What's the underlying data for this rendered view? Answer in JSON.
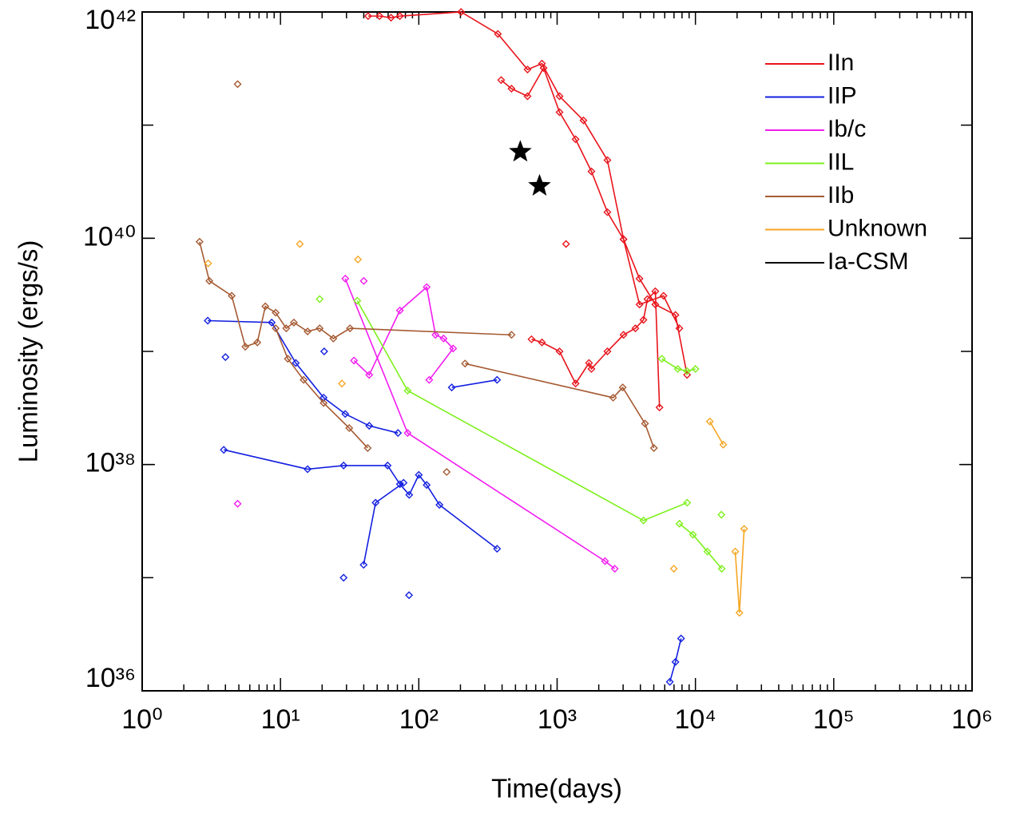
{
  "chart_data": {
    "type": "scatter",
    "xlabel": "Time(days)",
    "ylabel": "Luminosity (ergs/s)",
    "xscale": "log",
    "yscale": "log",
    "xlim": [
      1,
      1000000
    ],
    "ylim": [
      1e+36,
      1e+42
    ],
    "xticks": [
      {
        "value": 1,
        "label": "10⁰"
      },
      {
        "value": 10,
        "label": "10¹"
      },
      {
        "value": 100,
        "label": "10²"
      },
      {
        "value": 1000,
        "label": "10³"
      },
      {
        "value": 10000,
        "label": "10⁴"
      },
      {
        "value": 100000,
        "label": "10⁵"
      },
      {
        "value": 1000000,
        "label": "10⁶"
      }
    ],
    "yticks": [
      {
        "value": 1e+36,
        "label": "10³⁶"
      },
      {
        "value": 1e+38,
        "label": "10³⁸"
      },
      {
        "value": 1e+40,
        "label": "10⁴⁰"
      },
      {
        "value": 1e+42,
        "label": "10⁴²"
      }
    ],
    "legend": "top-right",
    "series": [
      {
        "name": "IIn",
        "color": "#e8141c",
        "x": [
          43,
          52,
          63,
          73,
          202,
          373,
          611,
          777,
          1041,
          1550,
          2310,
          3020,
          3940,
          5880,
          7660,
          null,
          394,
          468,
          611,
          798,
          1041,
          1360,
          1770,
          2310,
          3020,
          3940,
          5130,
          7170,
          8700,
          null,
          653,
          777,
          1041,
          1360,
          1700,
          1770,
          2310,
          3020,
          3680,
          4210,
          4500,
          5130,
          5500,
          null,
          1160
        ],
        "values": [
          9.2e+41,
          9.2e+41,
          8.9e+41,
          9.2e+41,
          1e+42,
          6.4e+41,
          3.1e+41,
          3.5e+41,
          1.8e+41,
          1.1e+41,
          4.9e+40,
          9.8e+39,
          2.6e+39,
          3.1e+39,
          1.6e+39,
          null,
          2.5e+41,
          2.1e+41,
          1.8e+41,
          3.2e+41,
          1.3e+41,
          7.5e+40,
          3.9e+40,
          1.7e+40,
          9.8e+39,
          4.4e+39,
          2.6e+39,
          2.1e+39,
          6.2e+38,
          null,
          1.28e+39,
          1.2e+39,
          1e+39,
          5.2e+38,
          7.9e+38,
          7e+38,
          1e+39,
          1.4e+39,
          1.6e+39,
          1.9e+39,
          2.9e+39,
          3.4e+39,
          3.2e+38,
          null,
          8.9e+39
        ]
      },
      {
        "name": "IIP",
        "color": "#1420e0",
        "x": [
          2.98,
          8.64,
          12.9,
          20.5,
          29.4,
          43.8,
          70.7,
          null,
          3.89,
          15.7,
          28.6,
          59.5,
          73,
          85.3,
          100,
          114,
          141,
          368,
          null,
          39.9,
          48.7,
          77.6,
          null,
          173,
          368,
          null,
          4,
          null,
          20.7,
          null,
          28.6,
          null,
          85,
          null,
          6530,
          7170,
          7870
        ],
        "values": [
          1.87e+39,
          1.8e+39,
          7.9e+38,
          3.9e+38,
          2.8e+38,
          2.2e+38,
          1.9e+38,
          null,
          1.35e+38,
          9.1e+37,
          9.8e+37,
          9.8e+37,
          6.7e+37,
          5.4e+37,
          8.1e+37,
          6.6e+37,
          4.4e+37,
          1.8e+37,
          null,
          1.3e+37,
          4.6e+37,
          6.9e+37,
          null,
          4.8e+38,
          5.6e+38,
          null,
          8.9e+38,
          null,
          1e+39,
          null,
          1e+37,
          null,
          7e+36,
          null,
          1.2e+36,
          1.8e+36,
          2.9e+36
        ]
      },
      {
        "name": "Ib/c",
        "color": "#f21cf0",
        "x": [
          29.4,
          83,
          2220,
          2610,
          null,
          34,
          43.8,
          73,
          114,
          132,
          151,
          177,
          119,
          null,
          4.9,
          null,
          40
        ],
        "values": [
          4.4e+39,
          1.9e+38,
          1.4e+37,
          1.2e+37,
          null,
          8.3e+38,
          6.2e+38,
          2.3e+39,
          3.7e+39,
          1.4e+39,
          1.3e+39,
          1.06e+39,
          5.6e+38,
          null,
          4.5e+37,
          null,
          4.2e+39
        ]
      },
      {
        "name": "IIL",
        "color": "#7ef01c",
        "x": [
          35.9,
          83,
          4210,
          8700,
          null,
          7660,
          9600,
          12200,
          15500,
          null,
          5720,
          7460,
          8700,
          10000,
          null,
          19.2,
          null,
          15400
        ],
        "values": [
          2.8e+39,
          4.5e+38,
          3.2e+37,
          4.6e+37,
          null,
          3e+37,
          2.4e+37,
          1.7e+37,
          1.2e+37,
          null,
          8.6e+38,
          7e+38,
          6.7e+38,
          7e+38,
          null,
          2.9e+39,
          null,
          3.6e+37
        ]
      },
      {
        "name": "IIb",
        "color": "#a55a32",
        "x": [
          2.6,
          3.06,
          4.44,
          5.57,
          6.8,
          7.77,
          9.23,
          11,
          12.5,
          15.7,
          19.2,
          24.1,
          31.8,
          468,
          null,
          9.23,
          11.3,
          14.7,
          20.5,
          31.4,
          42.7,
          null,
          216,
          2540,
          2980,
          4320,
          5010,
          null,
          4.9,
          null,
          159
        ],
        "values": [
          9.3e+39,
          4.2e+39,
          3.1e+39,
          1.1e+39,
          1.2e+39,
          2.5e+39,
          2.2e+39,
          1.6e+39,
          1.8e+39,
          1.5e+39,
          1.6e+39,
          1.3e+39,
          1.6e+39,
          1.4e+39,
          null,
          1.6e+39,
          8.6e+38,
          5.6e+38,
          3.5e+38,
          2.1e+38,
          1.4e+38,
          null,
          7.8e+38,
          3.9e+38,
          4.8e+38,
          2.3e+38,
          1.4e+38,
          null,
          2.3e+41,
          null,
          8.6e+37
        ]
      },
      {
        "name": "Unknown",
        "color": "#f5a623",
        "x": [
          13.8,
          null,
          36.3,
          null,
          3,
          null,
          27.8,
          null,
          12700,
          15900,
          null,
          19400,
          20800,
          22500,
          null,
          6980
        ],
        "values": [
          8.9e+39,
          null,
          6.5e+39,
          null,
          6e+39,
          null,
          5.2e+38,
          null,
          2.4e+38,
          1.5e+38,
          null,
          1.7e+37,
          4.9e+36,
          2.7e+37,
          null,
          1.2e+37
        ]
      },
      {
        "name": "Ia-CSM",
        "color": "#000000",
        "x": [],
        "values": []
      }
    ],
    "stars": {
      "color": "#000000",
      "x": [
        542,
        746
      ],
      "values": [
        5.8e+40,
        2.9e+40
      ]
    }
  }
}
